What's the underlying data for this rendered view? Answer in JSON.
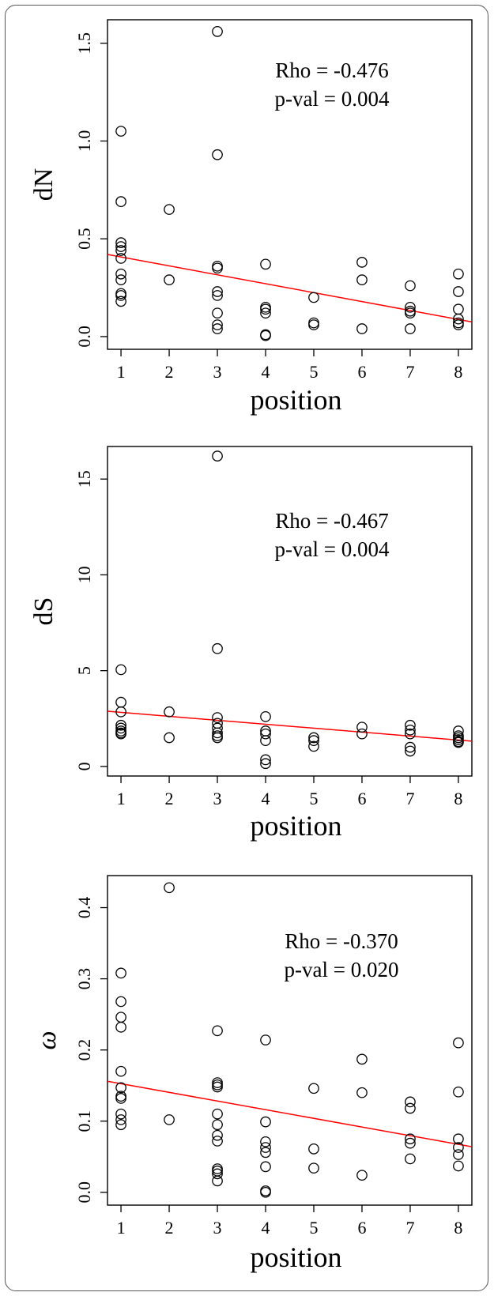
{
  "chart_data": [
    {
      "type": "scatter",
      "title": "",
      "xlabel": "position",
      "ylabel": "dN",
      "ylabel_italic": false,
      "xlim": [
        0.72,
        8.28
      ],
      "ylim": [
        -0.065,
        1.62
      ],
      "xticks": [
        1,
        2,
        3,
        4,
        5,
        6,
        7,
        8
      ],
      "yticks": [
        0.0,
        0.5,
        1.0,
        1.5
      ],
      "ytick_labels": [
        "0.0",
        "0.5",
        "1.0",
        "1.5"
      ],
      "annotation": [
        "Rho = -0.476",
        "p-val = 0.004"
      ],
      "point_color": "#000000",
      "line_color": "#ff0000",
      "points": [
        [
          1,
          1.05
        ],
        [
          1,
          0.69
        ],
        [
          1,
          0.48
        ],
        [
          1,
          0.46
        ],
        [
          1,
          0.44
        ],
        [
          1,
          0.4
        ],
        [
          1,
          0.32
        ],
        [
          1,
          0.29
        ],
        [
          1,
          0.22
        ],
        [
          1,
          0.21
        ],
        [
          1,
          0.18
        ],
        [
          2,
          0.65
        ],
        [
          2,
          0.29
        ],
        [
          3,
          1.56
        ],
        [
          3,
          0.93
        ],
        [
          3,
          0.36
        ],
        [
          3,
          0.35
        ],
        [
          3,
          0.23
        ],
        [
          3,
          0.21
        ],
        [
          3,
          0.12
        ],
        [
          3,
          0.06
        ],
        [
          3,
          0.04
        ],
        [
          4,
          0.37
        ],
        [
          4,
          0.15
        ],
        [
          4,
          0.14
        ],
        [
          4,
          0.12
        ],
        [
          4,
          0.01
        ],
        [
          4,
          0.005
        ],
        [
          5,
          0.2
        ],
        [
          5,
          0.07
        ],
        [
          5,
          0.06
        ],
        [
          6,
          0.38
        ],
        [
          6,
          0.29
        ],
        [
          6,
          0.04
        ],
        [
          7,
          0.26
        ],
        [
          7,
          0.15
        ],
        [
          7,
          0.13
        ],
        [
          7,
          0.12
        ],
        [
          7,
          0.04
        ],
        [
          8,
          0.32
        ],
        [
          8,
          0.23
        ],
        [
          8,
          0.14
        ],
        [
          8,
          0.09
        ],
        [
          8,
          0.07
        ],
        [
          8,
          0.06
        ]
      ],
      "fit_line": {
        "x": [
          0.72,
          8.28
        ],
        "y": [
          0.42,
          0.075
        ]
      }
    },
    {
      "type": "scatter",
      "title": "",
      "xlabel": "position",
      "ylabel": "dS",
      "ylabel_italic": false,
      "xlim": [
        0.72,
        8.28
      ],
      "ylim": [
        -0.5,
        16.7
      ],
      "xticks": [
        1,
        2,
        3,
        4,
        5,
        6,
        7,
        8
      ],
      "yticks": [
        0,
        5,
        10,
        15
      ],
      "ytick_labels": [
        "0",
        "5",
        "10",
        "15"
      ],
      "annotation": [
        "Rho = -0.467",
        "p-val = 0.004"
      ],
      "point_color": "#000000",
      "line_color": "#ff0000",
      "points": [
        [
          1,
          5.05
        ],
        [
          1,
          3.35
        ],
        [
          1,
          2.85
        ],
        [
          1,
          2.15
        ],
        [
          1,
          2.0
        ],
        [
          1,
          1.85
        ],
        [
          1,
          1.75
        ],
        [
          1,
          1.7
        ],
        [
          2,
          2.85
        ],
        [
          2,
          1.5
        ],
        [
          3,
          16.2
        ],
        [
          3,
          6.15
        ],
        [
          3,
          2.55
        ],
        [
          3,
          2.25
        ],
        [
          3,
          2.0
        ],
        [
          3,
          1.75
        ],
        [
          3,
          1.6
        ],
        [
          3,
          1.5
        ],
        [
          4,
          2.6
        ],
        [
          4,
          1.85
        ],
        [
          4,
          1.7
        ],
        [
          4,
          1.35
        ],
        [
          4,
          0.35
        ],
        [
          4,
          0.15
        ],
        [
          5,
          1.5
        ],
        [
          5,
          1.35
        ],
        [
          5,
          1.05
        ],
        [
          6,
          2.05
        ],
        [
          6,
          1.7
        ],
        [
          7,
          2.15
        ],
        [
          7,
          1.9
        ],
        [
          7,
          1.7
        ],
        [
          7,
          1.0
        ],
        [
          7,
          0.8
        ],
        [
          8,
          1.85
        ],
        [
          8,
          1.6
        ],
        [
          8,
          1.5
        ],
        [
          8,
          1.4
        ],
        [
          8,
          1.3
        ],
        [
          8,
          1.25
        ]
      ],
      "fit_line": {
        "x": [
          0.72,
          8.28
        ],
        "y": [
          2.88,
          1.32
        ]
      }
    },
    {
      "type": "scatter",
      "title": "",
      "xlabel": "position",
      "ylabel": "ω",
      "ylabel_italic": true,
      "xlim": [
        0.72,
        8.28
      ],
      "ylim": [
        -0.018,
        0.445
      ],
      "xticks": [
        1,
        2,
        3,
        4,
        5,
        6,
        7,
        8
      ],
      "yticks": [
        0.0,
        0.1,
        0.2,
        0.3,
        0.4
      ],
      "ytick_labels": [
        "0.0",
        "0.1",
        "0.2",
        "0.3",
        "0.4"
      ],
      "annotation": [
        "Rho = -0.370",
        "p-val = 0.020"
      ],
      "point_color": "#000000",
      "line_color": "#ff0000",
      "points": [
        [
          1,
          0.308
        ],
        [
          1,
          0.268
        ],
        [
          1,
          0.246
        ],
        [
          1,
          0.232
        ],
        [
          1,
          0.17
        ],
        [
          1,
          0.147
        ],
        [
          1,
          0.135
        ],
        [
          1,
          0.132
        ],
        [
          1,
          0.11
        ],
        [
          1,
          0.102
        ],
        [
          1,
          0.095
        ],
        [
          2,
          0.428
        ],
        [
          2,
          0.102
        ],
        [
          3,
          0.227
        ],
        [
          3,
          0.154
        ],
        [
          3,
          0.151
        ],
        [
          3,
          0.148
        ],
        [
          3,
          0.11
        ],
        [
          3,
          0.095
        ],
        [
          3,
          0.08
        ],
        [
          3,
          0.072
        ],
        [
          3,
          0.033
        ],
        [
          3,
          0.03
        ],
        [
          3,
          0.026
        ],
        [
          3,
          0.016
        ],
        [
          4,
          0.214
        ],
        [
          4,
          0.099
        ],
        [
          4,
          0.071
        ],
        [
          4,
          0.063
        ],
        [
          4,
          0.056
        ],
        [
          4,
          0.036
        ],
        [
          4,
          0.002
        ],
        [
          4,
          0.0
        ],
        [
          5,
          0.146
        ],
        [
          5,
          0.061
        ],
        [
          5,
          0.034
        ],
        [
          6,
          0.187
        ],
        [
          6,
          0.14
        ],
        [
          6,
          0.024
        ],
        [
          7,
          0.127
        ],
        [
          7,
          0.118
        ],
        [
          7,
          0.075
        ],
        [
          7,
          0.069
        ],
        [
          7,
          0.047
        ],
        [
          8,
          0.21
        ],
        [
          8,
          0.141
        ],
        [
          8,
          0.075
        ],
        [
          8,
          0.063
        ],
        [
          8,
          0.053
        ],
        [
          8,
          0.037
        ]
      ],
      "fit_line": {
        "x": [
          0.72,
          8.28
        ],
        "y": [
          0.156,
          0.064
        ]
      }
    }
  ]
}
